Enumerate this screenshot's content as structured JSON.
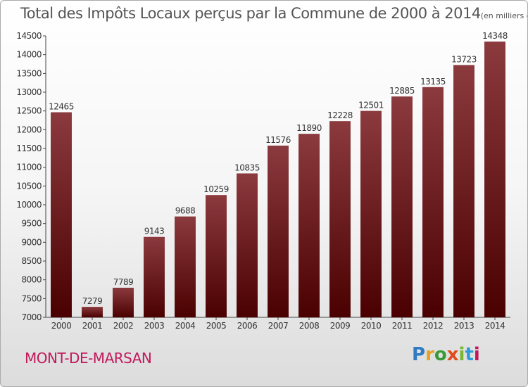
{
  "header": {
    "title": "Total des Impôts Locaux perçus par la Commune de 2000 à 2014",
    "unit": "(en milliers d'€)"
  },
  "footer": {
    "commune": "MONT-DE-MARSAN",
    "brand": "Proxiti"
  },
  "colors": {
    "bar_top": "#8b3a3e",
    "bar_bottom": "#4a0000",
    "commune": "#c2185b"
  },
  "chart_data": {
    "type": "bar",
    "title": "Total des Impôts Locaux perçus par la Commune de 2000 à 2014",
    "xlabel": "",
    "ylabel": "",
    "ylim": [
      7000,
      14500
    ],
    "yticks": [
      7000,
      7500,
      8000,
      8500,
      9000,
      9500,
      10000,
      10500,
      11000,
      11500,
      12000,
      12500,
      13000,
      13500,
      14000,
      14500
    ],
    "grid": false,
    "categories": [
      "2000",
      "2001",
      "2002",
      "2003",
      "2004",
      "2005",
      "2006",
      "2007",
      "2008",
      "2009",
      "2010",
      "2011",
      "2012",
      "2013",
      "2014"
    ],
    "values": [
      12465,
      7279,
      7789,
      9143,
      9688,
      10259,
      10835,
      11576,
      11890,
      12228,
      12501,
      12885,
      13135,
      13723,
      14348
    ]
  }
}
